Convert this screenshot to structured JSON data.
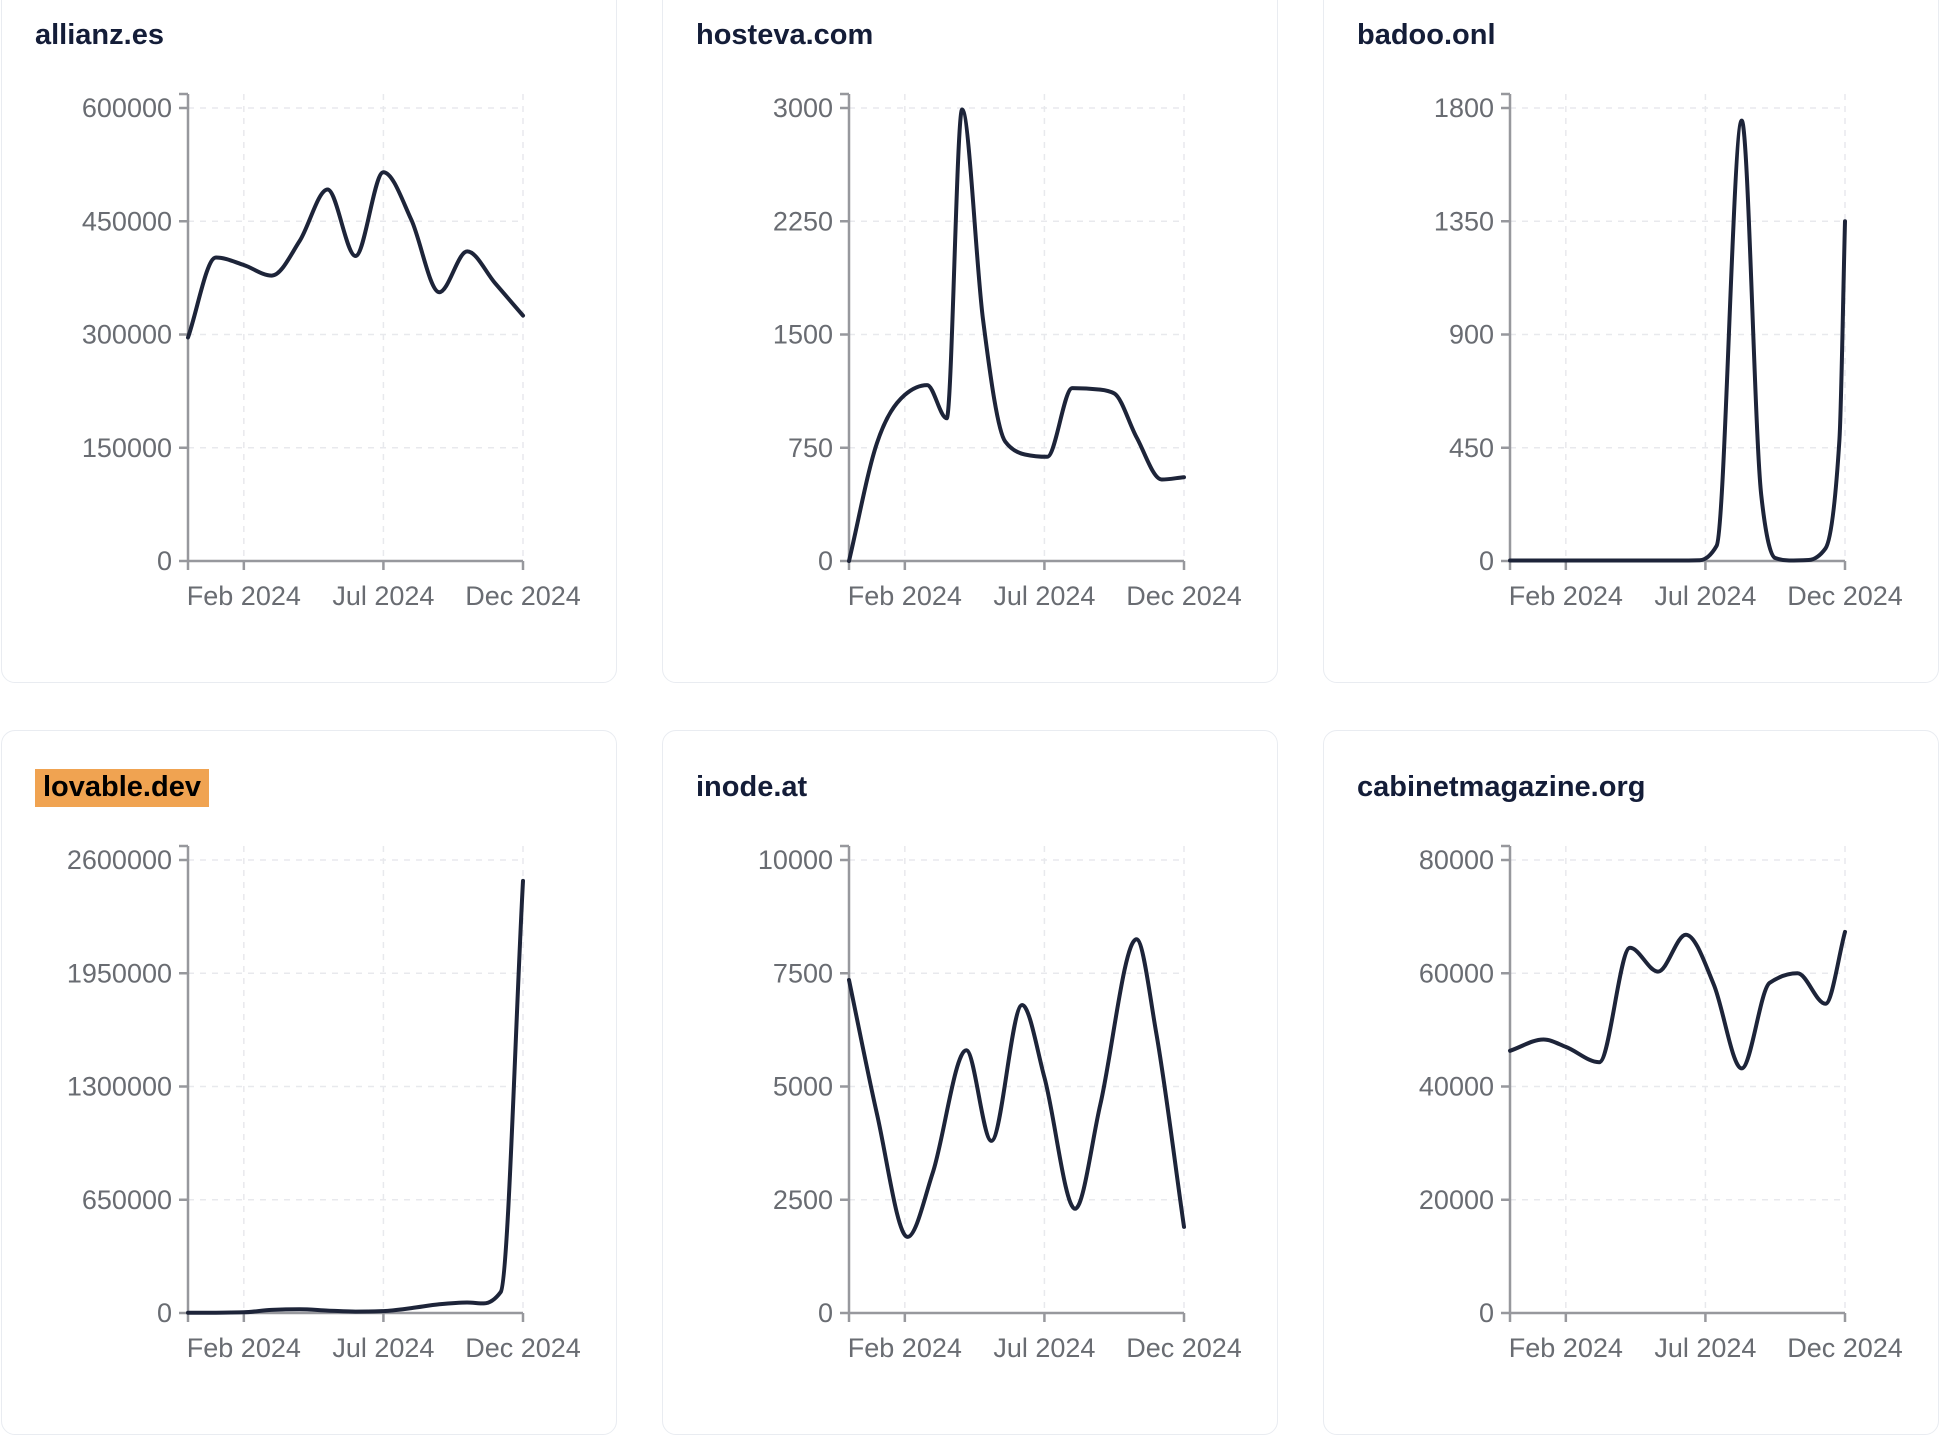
{
  "page": {
    "background": "#ffffff"
  },
  "colors": {
    "line": "#1d2439",
    "title": "#141d38",
    "tick_label": "#696c72",
    "axis": "#97989d",
    "gridline": "#e8e9ed",
    "card_border": "#e9ecf1",
    "highlight_bg": "#f0a351",
    "highlight_text": "#000000"
  },
  "axis": {
    "x_tick_labels": [
      "Feb 2024",
      "Jul 2024",
      "Dec 2024"
    ],
    "x_tick_months": [
      2,
      7,
      12
    ],
    "x_domain_months": [
      0,
      12
    ],
    "grid": "dashed"
  },
  "chart_data": [
    {
      "type": "line",
      "title": "allianz.es",
      "highlighted": false,
      "xlabel": "",
      "ylabel": "",
      "ylim": [
        0,
        600000
      ],
      "y_ticks": [
        0,
        150000,
        300000,
        450000,
        600000
      ],
      "x_tick_labels": [
        "Feb 2024",
        "Jul 2024",
        "Dec 2024"
      ],
      "points": [
        [
          0,
          296000
        ],
        [
          1,
          402000
        ],
        [
          2,
          392000
        ],
        [
          3,
          378000
        ],
        [
          4,
          424000
        ],
        [
          5,
          492000
        ],
        [
          6,
          404000
        ],
        [
          7,
          515000
        ],
        [
          8,
          452000
        ],
        [
          9,
          356000
        ],
        [
          10,
          410000
        ],
        [
          11,
          368000
        ],
        [
          12,
          325000
        ]
      ]
    },
    {
      "type": "line",
      "title": "hosteva.com",
      "highlighted": false,
      "xlabel": "",
      "ylabel": "",
      "ylim": [
        0,
        3000
      ],
      "y_ticks": [
        0,
        750,
        1500,
        2250,
        3000
      ],
      "x_tick_labels": [
        "Feb 2024",
        "Jul 2024",
        "Dec 2024"
      ],
      "points": [
        [
          0,
          0
        ],
        [
          1,
          780
        ],
        [
          2,
          1100
        ],
        [
          2.8,
          1165
        ],
        [
          3.5,
          945
        ],
        [
          4.05,
          2990
        ],
        [
          4.8,
          1600
        ],
        [
          5.6,
          790
        ],
        [
          6.3,
          705
        ],
        [
          7.1,
          690
        ],
        [
          8,
          1145
        ],
        [
          9,
          1135
        ],
        [
          9.5,
          1110
        ],
        [
          10.3,
          820
        ],
        [
          11.2,
          540
        ],
        [
          12,
          555
        ]
      ]
    },
    {
      "type": "line",
      "title": "badoo.onl",
      "highlighted": false,
      "xlabel": "",
      "ylabel": "",
      "ylim": [
        0,
        1800
      ],
      "y_ticks": [
        0,
        450,
        900,
        1350,
        1800
      ],
      "x_tick_labels": [
        "Feb 2024",
        "Jul 2024",
        "Dec 2024"
      ],
      "points": [
        [
          0,
          2
        ],
        [
          1,
          2
        ],
        [
          2,
          2
        ],
        [
          3,
          2
        ],
        [
          4,
          2
        ],
        [
          5,
          2
        ],
        [
          6,
          2
        ],
        [
          6.8,
          3
        ],
        [
          7.4,
          60
        ],
        [
          8.3,
          1750
        ],
        [
          9,
          260
        ],
        [
          9.5,
          12
        ],
        [
          10,
          2
        ],
        [
          10.7,
          4
        ],
        [
          11.3,
          50
        ],
        [
          11.8,
          480
        ],
        [
          12,
          1350
        ]
      ]
    },
    {
      "type": "line",
      "title": "lovable.dev",
      "highlighted": true,
      "xlabel": "",
      "ylabel": "",
      "ylim": [
        0,
        2600000
      ],
      "y_ticks": [
        0,
        650000,
        1300000,
        1950000,
        2600000
      ],
      "x_tick_labels": [
        "Feb 2024",
        "Jul 2024",
        "Dec 2024"
      ],
      "points": [
        [
          0,
          2000
        ],
        [
          1,
          2000
        ],
        [
          2,
          4000
        ],
        [
          3,
          18000
        ],
        [
          4,
          21000
        ],
        [
          5,
          14000
        ],
        [
          6,
          8000
        ],
        [
          7,
          11000
        ],
        [
          8,
          28000
        ],
        [
          9,
          50000
        ],
        [
          10,
          60000
        ],
        [
          10.6,
          55000
        ],
        [
          11.2,
          120000
        ],
        [
          12,
          2480000
        ]
      ]
    },
    {
      "type": "line",
      "title": "inode.at",
      "highlighted": false,
      "xlabel": "",
      "ylabel": "",
      "ylim": [
        0,
        10000
      ],
      "y_ticks": [
        0,
        2500,
        5000,
        7500,
        10000
      ],
      "x_tick_labels": [
        "Feb 2024",
        "Jul 2024",
        "Dec 2024"
      ],
      "points": [
        [
          0,
          7350
        ],
        [
          1,
          4400
        ],
        [
          2.1,
          1680
        ],
        [
          3,
          3100
        ],
        [
          4.2,
          5800
        ],
        [
          5.1,
          3800
        ],
        [
          6.2,
          6800
        ],
        [
          7,
          5200
        ],
        [
          8.1,
          2300
        ],
        [
          9,
          4600
        ],
        [
          10.3,
          8250
        ],
        [
          11,
          6200
        ],
        [
          12,
          1900
        ]
      ]
    },
    {
      "type": "line",
      "title": "cabinetmagazine.org",
      "highlighted": false,
      "xlabel": "",
      "ylabel": "",
      "ylim": [
        0,
        80000
      ],
      "y_ticks": [
        0,
        20000,
        40000,
        60000,
        80000
      ],
      "x_tick_labels": [
        "Feb 2024",
        "Jul 2024",
        "Dec 2024"
      ],
      "points": [
        [
          0,
          46300
        ],
        [
          1.2,
          48300
        ],
        [
          2,
          47000
        ],
        [
          3.2,
          44300
        ],
        [
          4.3,
          64500
        ],
        [
          5.3,
          60300
        ],
        [
          6.3,
          66800
        ],
        [
          7.3,
          58000
        ],
        [
          8.3,
          43200
        ],
        [
          9.3,
          58300
        ],
        [
          10.3,
          60000
        ],
        [
          11.3,
          54600
        ],
        [
          12,
          67300
        ]
      ]
    }
  ]
}
